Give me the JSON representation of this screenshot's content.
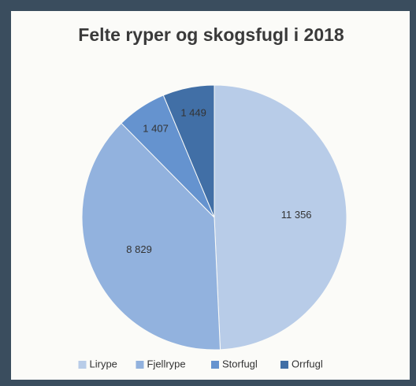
{
  "chart_data": {
    "type": "pie",
    "title": "Felte ryper og skogsfugl i 2018",
    "categories": [
      "Lirype",
      "Fjellrype",
      "Storfugl",
      "Orrfugl"
    ],
    "values": [
      11356,
      8829,
      1407,
      1449
    ],
    "value_labels": [
      "11 356",
      "8 829",
      "1 407",
      "1 449"
    ],
    "colors": [
      "#b8cce8",
      "#92b2de",
      "#6593cf",
      "#416fa6"
    ],
    "legend": "bottom"
  }
}
